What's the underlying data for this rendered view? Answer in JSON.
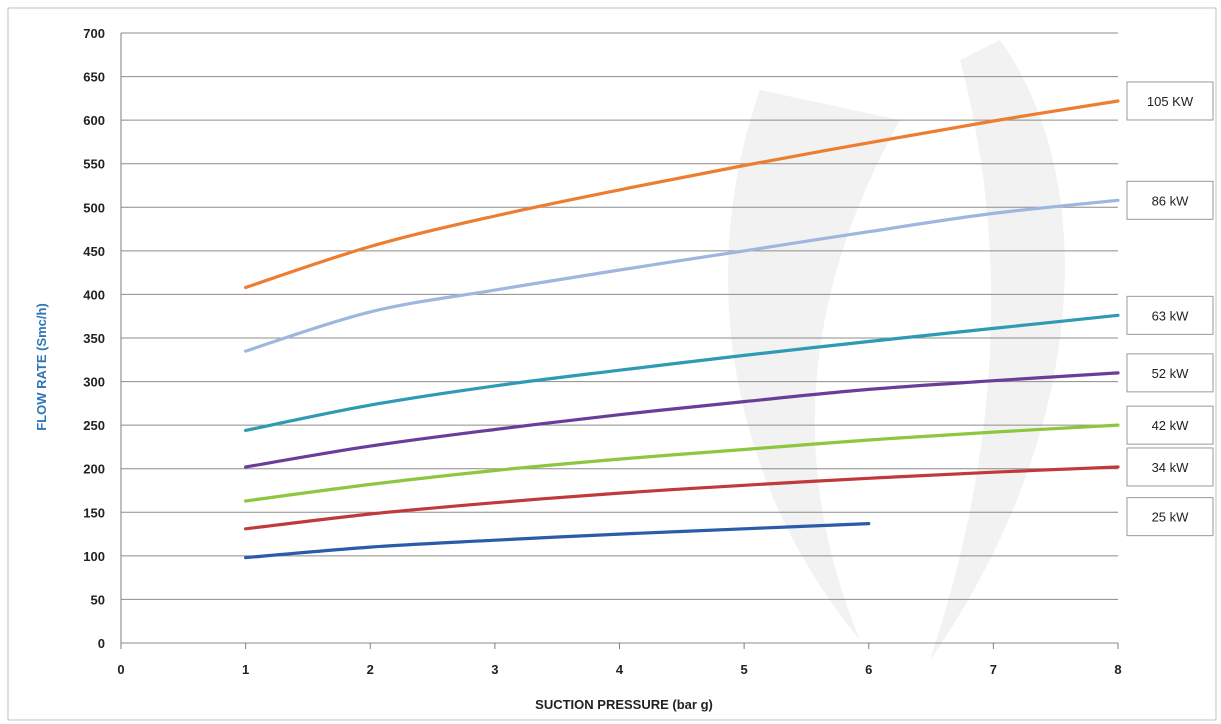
{
  "chart_data": {
    "type": "line",
    "xlabel": "SUCTION PRESSURE (bar g)",
    "ylabel": "FLOW RATE  (Smc/h)",
    "xlim": [
      0,
      8
    ],
    "ylim": [
      0,
      700
    ],
    "x_ticks": [
      "0",
      "1",
      "2",
      "3",
      "4",
      "5",
      "6",
      "7",
      "8"
    ],
    "y_ticks": [
      "0",
      "50",
      "100",
      "150",
      "200",
      "250",
      "300",
      "350",
      "400",
      "450",
      "500",
      "550",
      "600",
      "650",
      "700"
    ],
    "grid": true,
    "legend": "right-side boxed labels",
    "series": [
      {
        "name": "105 KW",
        "color": "#ed7d31",
        "x": [
          1,
          2,
          3,
          4,
          5,
          6,
          7,
          8
        ],
        "y": [
          408,
          455,
          490,
          520,
          548,
          574,
          599,
          622
        ]
      },
      {
        "name": "86 kW",
        "color": "#9db7df",
        "x": [
          1,
          2,
          3,
          4,
          5,
          6,
          7,
          8
        ],
        "y": [
          335,
          380,
          405,
          428,
          450,
          472,
          493,
          508
        ]
      },
      {
        "name": "63 kW",
        "color": "#2e9ab3",
        "x": [
          1,
          2,
          3,
          4,
          5,
          6,
          7,
          8
        ],
        "y": [
          244,
          273,
          295,
          313,
          330,
          346,
          361,
          376
        ]
      },
      {
        "name": "52 kW",
        "color": "#6a3d9a",
        "x": [
          1,
          2,
          3,
          4,
          5,
          6,
          7,
          8
        ],
        "y": [
          202,
          226,
          245,
          262,
          277,
          291,
          301,
          310
        ]
      },
      {
        "name": "42 kW",
        "color": "#8dc63f",
        "x": [
          1,
          2,
          3,
          4,
          5,
          6,
          7,
          8
        ],
        "y": [
          163,
          182,
          198,
          211,
          222,
          233,
          242,
          250
        ]
      },
      {
        "name": "34 kW",
        "color": "#c0393b",
        "x": [
          1,
          2,
          3,
          4,
          5,
          6,
          7,
          8
        ],
        "y": [
          131,
          148,
          161,
          172,
          181,
          189,
          196,
          202
        ]
      },
      {
        "name": "25 kW",
        "color": "#2a5caa",
        "x": [
          1,
          2,
          3,
          4,
          5,
          6
        ],
        "y": [
          98,
          110,
          118,
          125,
          131,
          137
        ]
      }
    ]
  },
  "colors": {
    "axis_title": "#2e75b6",
    "grid": "#8c8c8c",
    "watermark": "#f0f0f0"
  }
}
